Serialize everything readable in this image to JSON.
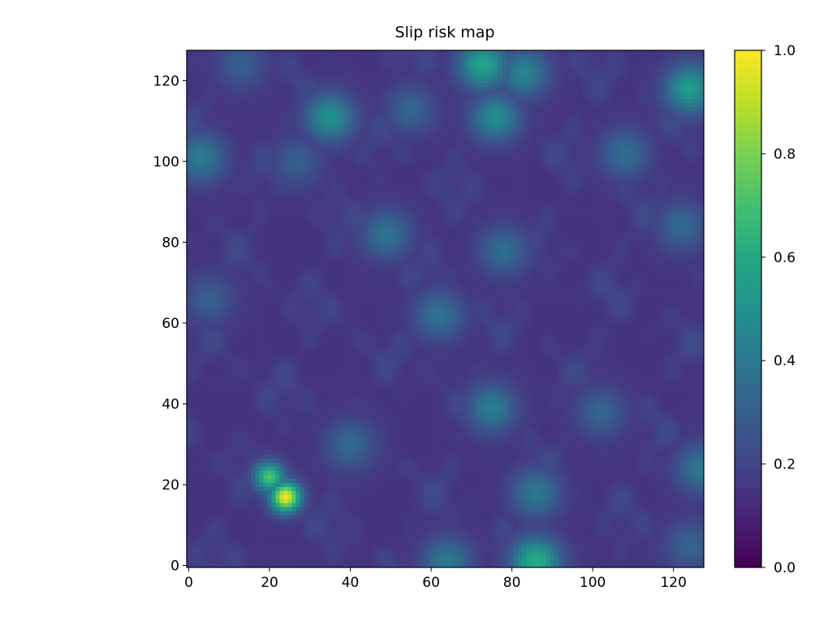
{
  "chart_data": {
    "type": "heatmap",
    "title": "Slip risk map",
    "xlabel": "",
    "ylabel": "",
    "xlim": [
      0,
      127
    ],
    "ylim": [
      0,
      127
    ],
    "x_ticks": [
      "0",
      "20",
      "40",
      "60",
      "80",
      "100",
      "120"
    ],
    "y_ticks": [
      "0",
      "20",
      "40",
      "60",
      "80",
      "100",
      "120"
    ],
    "colormap": "viridis",
    "color_range": [
      0.0,
      1.0
    ],
    "colorbar_ticks": [
      "0.0",
      "0.2",
      "0.4",
      "0.6",
      "0.8",
      "1.0"
    ],
    "grid_size": 128,
    "background_level": 0.15,
    "features": [
      {
        "x": 24,
        "y": 17,
        "value": 0.98
      },
      {
        "x": 20,
        "y": 22,
        "value": 0.72
      },
      {
        "x": 86,
        "y": 1,
        "value": 0.62
      },
      {
        "x": 73,
        "y": 124,
        "value": 0.58
      },
      {
        "x": 124,
        "y": 118,
        "value": 0.55
      },
      {
        "x": 35,
        "y": 111,
        "value": 0.5
      },
      {
        "x": 76,
        "y": 111,
        "value": 0.48
      },
      {
        "x": 83,
        "y": 122,
        "value": 0.45
      },
      {
        "x": 3,
        "y": 101,
        "value": 0.42
      },
      {
        "x": 75,
        "y": 39,
        "value": 0.42
      },
      {
        "x": 64,
        "y": 1,
        "value": 0.4
      },
      {
        "x": 86,
        "y": 18,
        "value": 0.4
      },
      {
        "x": 127,
        "y": 24,
        "value": 0.4
      },
      {
        "x": 62,
        "y": 62,
        "value": 0.38
      },
      {
        "x": 49,
        "y": 82,
        "value": 0.38
      },
      {
        "x": 78,
        "y": 78,
        "value": 0.36
      },
      {
        "x": 108,
        "y": 102,
        "value": 0.36
      },
      {
        "x": 122,
        "y": 84,
        "value": 0.34
      },
      {
        "x": 124,
        "y": 5,
        "value": 0.32
      },
      {
        "x": 40,
        "y": 30,
        "value": 0.34
      },
      {
        "x": 102,
        "y": 38,
        "value": 0.32
      },
      {
        "x": 55,
        "y": 113,
        "value": 0.32
      },
      {
        "x": 27,
        "y": 100,
        "value": 0.3
      },
      {
        "x": 5,
        "y": 66,
        "value": 0.3
      },
      {
        "x": 13,
        "y": 124,
        "value": 0.3
      }
    ]
  }
}
